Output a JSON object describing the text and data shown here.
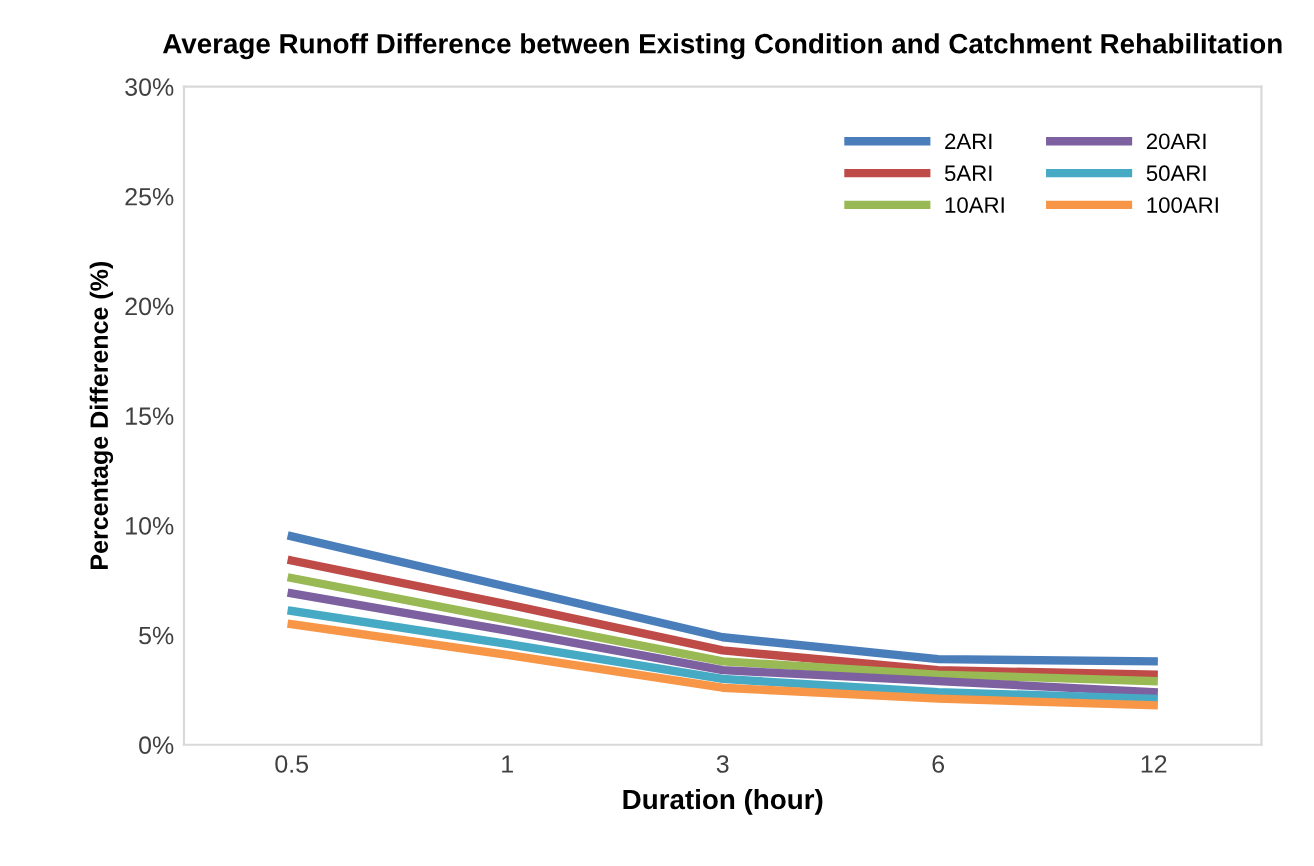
{
  "chart_data": {
    "type": "line",
    "title": "Average Runoff Difference between Existing Condition and Catchment Rehabilitation",
    "xlabel": "Duration (hour)",
    "ylabel": "Percentage Difference (%)",
    "categories": [
      "0.5",
      "1",
      "3",
      "6",
      "12"
    ],
    "series": [
      {
        "name": "2ARI",
        "color": "#4a7ebb",
        "values": [
          9.5,
          7.2,
          4.9,
          3.9,
          3.8
        ]
      },
      {
        "name": "5ARI",
        "color": "#be4b48",
        "values": [
          8.4,
          6.4,
          4.3,
          3.4,
          3.2
        ]
      },
      {
        "name": "10ARI",
        "color": "#98b954",
        "values": [
          7.6,
          5.7,
          3.8,
          3.2,
          2.9
        ]
      },
      {
        "name": "20ARI",
        "color": "#7d60a0",
        "values": [
          6.9,
          5.2,
          3.4,
          2.9,
          2.4
        ]
      },
      {
        "name": "50ARI",
        "color": "#46aac5",
        "values": [
          6.1,
          4.6,
          3.0,
          2.4,
          2.1
        ]
      },
      {
        "name": "100ARI",
        "color": "#f79646",
        "values": [
          5.5,
          4.1,
          2.6,
          2.1,
          1.8
        ]
      }
    ],
    "ylim": [
      0,
      30
    ],
    "yticks": [
      {
        "value": 0,
        "label": "0%"
      },
      {
        "value": 5,
        "label": "5%"
      },
      {
        "value": 10,
        "label": "10%"
      },
      {
        "value": 15,
        "label": "15%"
      },
      {
        "value": 20,
        "label": "20%"
      },
      {
        "value": 25,
        "label": "25%"
      },
      {
        "value": 30,
        "label": "30%"
      }
    ],
    "legend": "top right",
    "grid": false,
    "marker": "none",
    "line_style": "solid"
  }
}
